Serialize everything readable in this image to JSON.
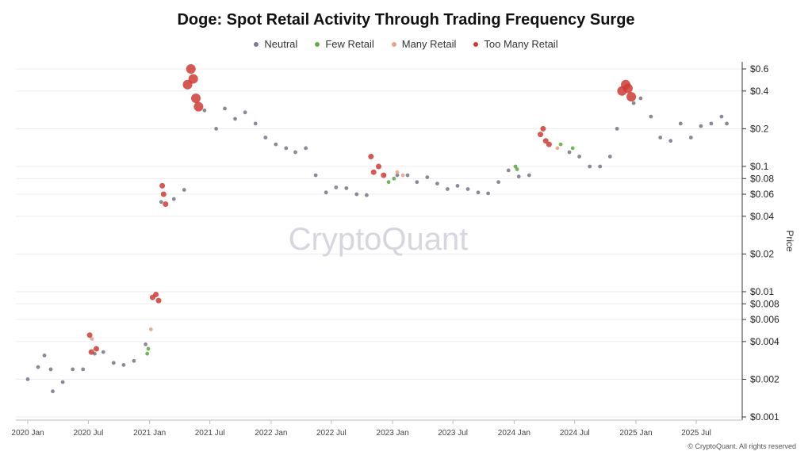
{
  "chart_data": {
    "type": "scatter",
    "title": "Doge: Spot Retail Activity Through Trading Frequency Surge",
    "watermark": "CryptoQuant",
    "ylabel": "Price",
    "xlabel": "",
    "y_scale": "log",
    "ylim": [
      0.001,
      0.7
    ],
    "grid": true,
    "legend_position": "top-center",
    "x_ticks": [
      "2020 Jan",
      "2020 Jul",
      "2021 Jan",
      "2021 Jul",
      "2022 Jan",
      "2022 Jul",
      "2023 Jan",
      "2023 Jul",
      "2024 Jan",
      "2024 Jul",
      "2025 Jan",
      "2025 Jul"
    ],
    "y_ticks": [
      {
        "value": 0.6,
        "label": "$0.6"
      },
      {
        "value": 0.4,
        "label": "$0.4"
      },
      {
        "value": 0.2,
        "label": "$0.2"
      },
      {
        "value": 0.1,
        "label": "$0.1"
      },
      {
        "value": 0.08,
        "label": "$0.08"
      },
      {
        "value": 0.06,
        "label": "$0.06"
      },
      {
        "value": 0.04,
        "label": "$0.04"
      },
      {
        "value": 0.02,
        "label": "$0.02"
      },
      {
        "value": 0.01,
        "label": "$0.01"
      },
      {
        "value": 0.008,
        "label": "$0.008"
      },
      {
        "value": 0.006,
        "label": "$0.006"
      },
      {
        "value": 0.004,
        "label": "$0.004"
      },
      {
        "value": 0.002,
        "label": "$0.002"
      },
      {
        "value": 0.001,
        "label": "$0.001"
      }
    ],
    "series": [
      {
        "name": "Neutral",
        "color": "#7d7c8c",
        "points": [
          [
            "2020-01-01",
            0.002
          ],
          [
            "2020-02-01",
            0.0025
          ],
          [
            "2020-02-20",
            0.0031
          ],
          [
            "2020-03-10",
            0.0024
          ],
          [
            "2020-03-16",
            0.0016
          ],
          [
            "2020-04-15",
            0.0019
          ],
          [
            "2020-05-15",
            0.0024
          ],
          [
            "2020-06-15",
            0.0024
          ],
          [
            "2020-07-20",
            0.0032
          ],
          [
            "2020-08-15",
            0.0033
          ],
          [
            "2020-09-15",
            0.0027
          ],
          [
            "2020-10-15",
            0.0026
          ],
          [
            "2020-11-15",
            0.0028
          ],
          [
            "2020-12-20",
            0.0038
          ],
          [
            "2021-02-05",
            0.052
          ],
          [
            "2021-03-15",
            0.055
          ],
          [
            "2021-04-15",
            0.065
          ],
          [
            "2021-06-15",
            0.28
          ],
          [
            "2021-07-20",
            0.2
          ],
          [
            "2021-08-15",
            0.29
          ],
          [
            "2021-09-15",
            0.24
          ],
          [
            "2021-10-15",
            0.27
          ],
          [
            "2021-11-15",
            0.22
          ],
          [
            "2021-12-15",
            0.17
          ],
          [
            "2022-01-15",
            0.15
          ],
          [
            "2022-02-15",
            0.14
          ],
          [
            "2022-03-15",
            0.13
          ],
          [
            "2022-04-15",
            0.14
          ],
          [
            "2022-05-15",
            0.085
          ],
          [
            "2022-06-15",
            0.062
          ],
          [
            "2022-07-15",
            0.068
          ],
          [
            "2022-08-15",
            0.067
          ],
          [
            "2022-09-15",
            0.06
          ],
          [
            "2022-10-15",
            0.059
          ],
          [
            "2023-01-15",
            0.085
          ],
          [
            "2023-02-15",
            0.085
          ],
          [
            "2023-03-15",
            0.075
          ],
          [
            "2023-04-15",
            0.082
          ],
          [
            "2023-05-15",
            0.073
          ],
          [
            "2023-06-15",
            0.066
          ],
          [
            "2023-07-15",
            0.07
          ],
          [
            "2023-08-15",
            0.066
          ],
          [
            "2023-09-15",
            0.062
          ],
          [
            "2023-10-15",
            0.061
          ],
          [
            "2023-11-15",
            0.075
          ],
          [
            "2023-12-15",
            0.093
          ],
          [
            "2024-01-15",
            0.083
          ],
          [
            "2024-02-15",
            0.085
          ],
          [
            "2024-06-15",
            0.13
          ],
          [
            "2024-07-15",
            0.12
          ],
          [
            "2024-08-15",
            0.1
          ],
          [
            "2024-09-15",
            0.1
          ],
          [
            "2024-10-15",
            0.12
          ],
          [
            "2024-11-05",
            0.2
          ],
          [
            "2024-12-25",
            0.32
          ],
          [
            "2025-01-15",
            0.35
          ],
          [
            "2025-02-15",
            0.25
          ],
          [
            "2025-03-15",
            0.17
          ],
          [
            "2025-04-15",
            0.16
          ],
          [
            "2025-05-15",
            0.22
          ],
          [
            "2025-06-15",
            0.17
          ],
          [
            "2025-07-15",
            0.21
          ],
          [
            "2025-08-15",
            0.22
          ],
          [
            "2025-09-15",
            0.25
          ],
          [
            "2025-10-01",
            0.22
          ]
        ]
      },
      {
        "name": "Few Retail",
        "color": "#5fae4b",
        "points": [
          [
            "2020-12-25",
            0.0032
          ],
          [
            "2020-12-28",
            0.0035
          ],
          [
            "2022-12-20",
            0.075
          ],
          [
            "2023-01-05",
            0.08
          ],
          [
            "2024-01-05",
            0.1
          ],
          [
            "2024-01-10",
            0.095
          ],
          [
            "2024-05-20",
            0.15
          ],
          [
            "2024-06-25",
            0.14
          ]
        ]
      },
      {
        "name": "Many Retail",
        "color": "#e8a48a",
        "points": [
          [
            "2020-07-12",
            0.0042
          ],
          [
            "2021-01-05",
            0.005
          ],
          [
            "2023-01-15",
            0.09
          ],
          [
            "2023-02-01",
            0.085
          ],
          [
            "2024-05-10",
            0.14
          ]
        ]
      },
      {
        "name": "Too Many Retail",
        "color": "#cf3b34",
        "points": [
          [
            "2020-07-05",
            0.0045
          ],
          [
            "2020-07-10",
            0.0033
          ],
          [
            "2020-07-25",
            0.0035
          ],
          [
            "2021-01-10",
            0.009
          ],
          [
            "2021-01-20",
            0.0095
          ],
          [
            "2021-01-28",
            0.0085
          ],
          [
            "2021-02-08",
            0.07
          ],
          [
            "2021-02-12",
            0.06
          ],
          [
            "2021-02-18",
            0.05
          ],
          [
            "2021-04-25",
            0.45
          ],
          [
            "2021-05-05",
            0.6
          ],
          [
            "2021-05-12",
            0.5
          ],
          [
            "2021-05-20",
            0.35
          ],
          [
            "2021-05-28",
            0.3
          ],
          [
            "2022-10-28",
            0.12
          ],
          [
            "2022-11-05",
            0.09
          ],
          [
            "2022-11-20",
            0.1
          ],
          [
            "2022-12-05",
            0.085
          ],
          [
            "2024-03-20",
            0.18
          ],
          [
            "2024-03-28",
            0.2
          ],
          [
            "2024-04-05",
            0.16
          ],
          [
            "2024-04-15",
            0.15
          ],
          [
            "2024-11-20",
            0.4
          ],
          [
            "2024-12-01",
            0.45
          ],
          [
            "2024-12-08",
            0.42
          ],
          [
            "2024-12-18",
            0.36
          ]
        ]
      }
    ]
  },
  "legend": [
    {
      "label": "Neutral",
      "color": "#7d7c8c"
    },
    {
      "label": "Few Retail",
      "color": "#5fae4b"
    },
    {
      "label": "Many Retail",
      "color": "#e8a48a"
    },
    {
      "label": "Too Many Retail",
      "color": "#cf3b34"
    }
  ],
  "footer": "© CryptoQuant. All rights reserved"
}
